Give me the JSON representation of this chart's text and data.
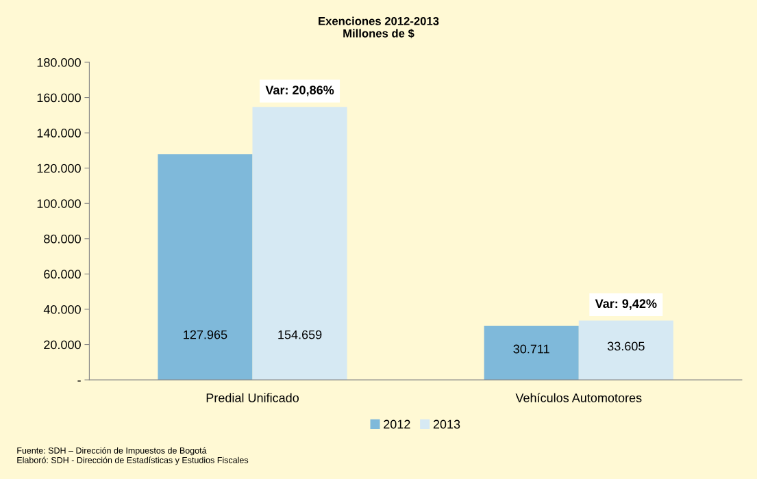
{
  "chart_data": {
    "type": "bar",
    "title": "Exenciones 2012-2013\nMillones de $",
    "categories": [
      "Predial Unificado",
      "Vehículos Automotores"
    ],
    "series": [
      {
        "name": "2012",
        "color": "#7fb9da",
        "values": [
          127965,
          30711
        ],
        "value_labels": [
          "127.965",
          "30.711"
        ]
      },
      {
        "name": "2013",
        "color": "#d6e9f3",
        "values": [
          154659,
          33605
        ],
        "value_labels": [
          "154.659",
          "33.605"
        ]
      }
    ],
    "ylim": [
      0,
      180000
    ],
    "yticks": [
      {
        "value": 0,
        "label": "-"
      },
      {
        "value": 20000,
        "label": "20.000"
      },
      {
        "value": 40000,
        "label": "40.000"
      },
      {
        "value": 60000,
        "label": "60.000"
      },
      {
        "value": 80000,
        "label": "80.000"
      },
      {
        "value": 100000,
        "label": "100.000"
      },
      {
        "value": 120000,
        "label": "120.000"
      },
      {
        "value": 140000,
        "label": "140.000"
      },
      {
        "value": 160000,
        "label": "160.000"
      },
      {
        "value": 180000,
        "label": "180.000"
      }
    ],
    "grid": false,
    "legend": "bottom",
    "annotations": [
      "Var: 20,86%",
      "Var: 9,42%",
      "Fuente: SDH – Dirección de Impuestos de Bogotá",
      "Elaboró: SDH - Dirección de Estadísticas y Estudios Fiscales"
    ]
  }
}
